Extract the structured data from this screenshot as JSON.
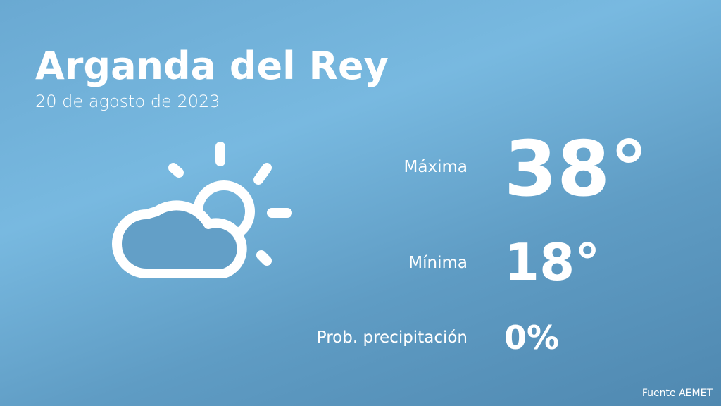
{
  "location": "Arganda del Rey",
  "date": "20 de agosto de 2023",
  "icon": "partly-cloudy-icon",
  "max": {
    "label": "Máxima",
    "value": "38°"
  },
  "min": {
    "label": "Mínima",
    "value": "18°"
  },
  "precip": {
    "label": "Prob. precipitación",
    "value": "0%"
  },
  "source": "Fuente AEMET",
  "colors": {
    "background_top": "#78b9e0",
    "background_bottom": "#4f88b0",
    "text": "#ffffff"
  }
}
